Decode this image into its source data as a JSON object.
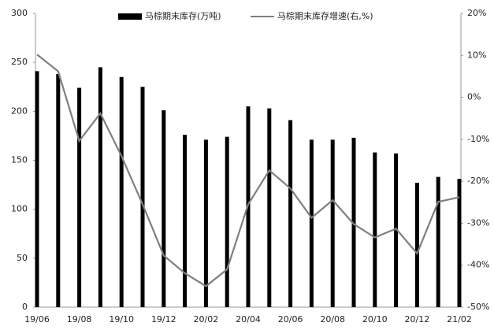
{
  "chart_data": {
    "type": "bar-line",
    "categories": [
      "19/06",
      null,
      "19/08",
      null,
      "19/10",
      null,
      "19/12",
      null,
      "20/02",
      null,
      "20/04",
      null,
      "20/06",
      null,
      "20/08",
      null,
      "20/10",
      null,
      "20/12",
      null,
      "21/02"
    ],
    "series": [
      {
        "name": "马棕期末库存(万吨)",
        "type": "bar",
        "color": "#000000",
        "values": [
          241,
          238,
          224,
          245,
          235,
          225,
          201,
          176,
          171,
          174,
          205,
          203,
          191,
          171,
          171,
          173,
          158,
          157,
          127,
          133,
          131
        ]
      },
      {
        "name": "马棕期末库存增速(右,%)",
        "type": "line",
        "axis": "y2",
        "color": "#7f7f7f",
        "values": [
          10.2,
          6.2,
          -10.4,
          -3.8,
          -14,
          -25.5,
          -37.7,
          -41.9,
          -45,
          -41,
          -25.5,
          -17.4,
          -21.7,
          -28.7,
          -24.5,
          -30.2,
          -33.4,
          -31.3,
          -37.2,
          -24.9,
          -23.8
        ]
      }
    ],
    "ylim": [
      0,
      300
    ],
    "yticks": [
      0,
      50,
      100,
      150,
      200,
      250,
      300
    ],
    "y2lim": [
      -50,
      20
    ],
    "y2ticks": [
      {
        "value": -50,
        "label": "-50%"
      },
      {
        "value": -40,
        "label": "-40%"
      },
      {
        "value": -30,
        "label": "-30%"
      },
      {
        "value": -20,
        "label": "-20%"
      },
      {
        "value": -10,
        "label": "-10%"
      },
      {
        "value": 0,
        "label": "0%"
      },
      {
        "value": 10,
        "label": "10%"
      },
      {
        "value": 20,
        "label": "20%"
      }
    ],
    "grid": false
  }
}
